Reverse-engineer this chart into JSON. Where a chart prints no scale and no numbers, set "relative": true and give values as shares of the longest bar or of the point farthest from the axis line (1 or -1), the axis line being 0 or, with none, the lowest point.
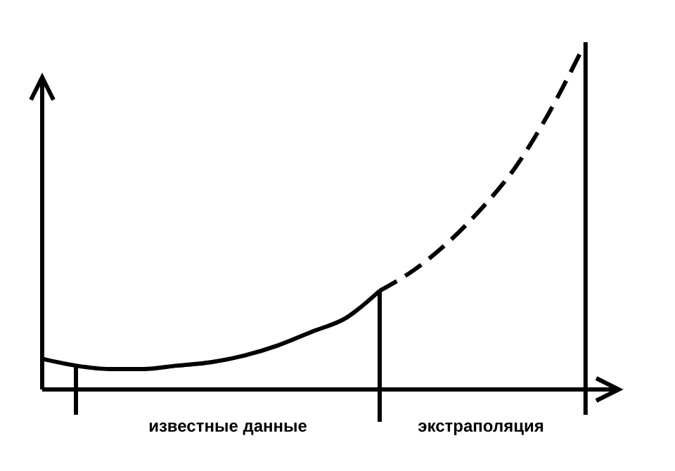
{
  "chart_data": {
    "type": "line",
    "relative": true,
    "categories": [
      null,
      null,
      null,
      null,
      null,
      null,
      null,
      null,
      null,
      null,
      null,
      null,
      null,
      null,
      null,
      null,
      null
    ],
    "series": [
      {
        "color": "#000000",
        "line_style": "solid",
        "values": [
          0.09,
          0.07,
          0.06,
          0.06,
          0.07,
          0.08,
          0.1,
          0.13,
          0.17,
          0.21,
          0.29,
          null,
          null,
          null,
          null,
          null,
          null
        ]
      },
      {
        "color": "#000000",
        "line_style": "dashed",
        "values": [
          null,
          null,
          null,
          null,
          null,
          null,
          null,
          null,
          null,
          null,
          0.29,
          0.35,
          0.43,
          0.53,
          0.65,
          0.81,
          1
        ]
      }
    ],
    "annotations": [
      "известные данные",
      "экстраполяция"
    ]
  }
}
